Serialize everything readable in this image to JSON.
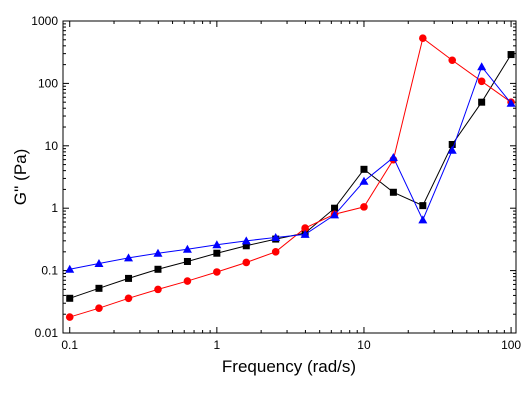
{
  "chart_data": {
    "type": "scatter",
    "xlabel": "Frequency (rad/s)",
    "ylabel": "G'' (Pa)",
    "xscale": "log",
    "yscale": "log",
    "xlim": [
      0.09,
      108
    ],
    "ylim": [
      0.01,
      1000
    ],
    "xticks": [
      {
        "value": 0.1,
        "label": "0.1"
      },
      {
        "value": 1,
        "label": "1"
      },
      {
        "value": 10,
        "label": "10"
      },
      {
        "value": 100,
        "label": "100"
      }
    ],
    "yticks": [
      {
        "value": 0.01,
        "label": "0.01"
      },
      {
        "value": 0.1,
        "label": "0.1"
      },
      {
        "value": 1,
        "label": "1"
      },
      {
        "value": 10,
        "label": "10"
      },
      {
        "value": 100,
        "label": "100"
      },
      {
        "value": 1000,
        "label": "1000"
      }
    ],
    "grid": false,
    "legend": false,
    "series": [
      {
        "color": "#000000",
        "marker": "square",
        "x": [
          0.1,
          0.158,
          0.251,
          0.398,
          0.631,
          1.0,
          1.585,
          2.512,
          3.981,
          6.31,
          10.0,
          15.85,
          25.12,
          39.81,
          63.1,
          100
        ],
        "y": [
          0.036,
          0.052,
          0.075,
          0.105,
          0.14,
          0.19,
          0.25,
          0.32,
          0.4,
          1.0,
          4.2,
          1.8,
          1.1,
          10.5,
          50,
          290
        ]
      },
      {
        "color": "#ff0000",
        "marker": "circle",
        "x": [
          0.1,
          0.158,
          0.251,
          0.398,
          0.631,
          1.0,
          1.585,
          2.512,
          3.981,
          6.31,
          10.0,
          15.85,
          25.12,
          39.81,
          63.1,
          100
        ],
        "y": [
          0.018,
          0.025,
          0.036,
          0.05,
          0.068,
          0.095,
          0.135,
          0.2,
          0.48,
          0.8,
          1.05,
          6.0,
          530,
          235,
          108,
          50
        ]
      },
      {
        "color": "#0000ff",
        "marker": "triangle",
        "x": [
          0.1,
          0.158,
          0.251,
          0.398,
          0.631,
          1.0,
          1.585,
          2.512,
          3.981,
          6.31,
          10.0,
          15.85,
          25.12,
          39.81,
          63.1,
          100
        ],
        "y": [
          0.105,
          0.13,
          0.16,
          0.19,
          0.22,
          0.26,
          0.3,
          0.34,
          0.38,
          0.78,
          2.7,
          6.5,
          0.65,
          8.5,
          185,
          48
        ]
      }
    ]
  }
}
